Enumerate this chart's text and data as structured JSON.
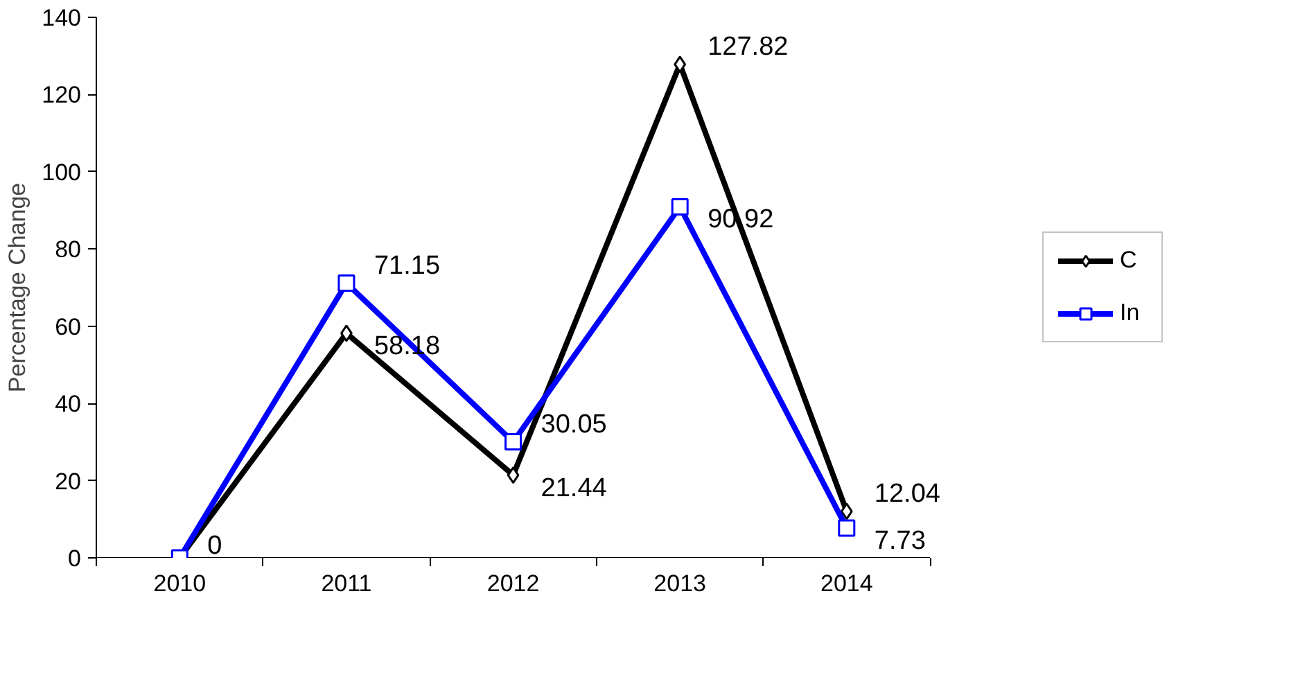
{
  "chart_data": {
    "type": "line",
    "ylabel": "Percentage Change",
    "categories": [
      "2010",
      "2011",
      "2012",
      "2013",
      "2014"
    ],
    "series": [
      {
        "name": "C",
        "color": "#000000",
        "marker": "diamond",
        "values": [
          0,
          58.18,
          21.44,
          127.82,
          12.04
        ],
        "value_labels": [
          "0",
          "58.18",
          "21.44",
          "127.82",
          "12.04"
        ]
      },
      {
        "name": "In",
        "color": "#0000ff",
        "marker": "square",
        "values": [
          0,
          71.15,
          30.05,
          90.92,
          7.73
        ],
        "value_labels": [
          null,
          "71.15",
          "30.05",
          "90.92",
          "7.73"
        ]
      }
    ],
    "ylim": [
      0,
      140
    ],
    "yticks": [
      0,
      20,
      40,
      60,
      80,
      100,
      120,
      140
    ],
    "grid": false,
    "legend": "right",
    "line_style": "solid"
  }
}
